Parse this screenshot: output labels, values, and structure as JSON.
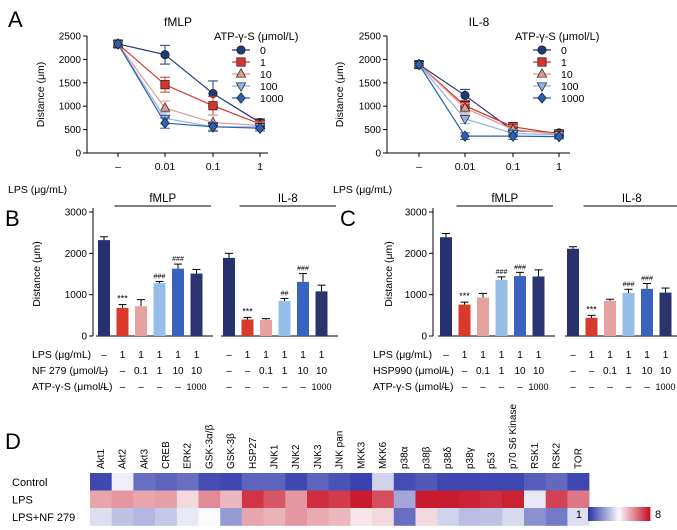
{
  "panels": {
    "A": "A",
    "B": "B",
    "C": "C",
    "D": "D"
  },
  "colors": {
    "c0": "#1f3a78",
    "c1": "#d9332a",
    "c10": "#e09a95",
    "c100": "#8fb4e2",
    "c1000": "#2c5fb5",
    "navy": "#26326e",
    "red": "#d83a2c",
    "salmon": "#e5a29e",
    "lightblue": "#96bfe8",
    "blue": "#3a63c0",
    "darknavy": "#2c3470"
  },
  "chart_data": [
    {
      "id": "A-fMLP",
      "type": "line",
      "title": "fMLP",
      "ylabel": "Distance (μm)",
      "xlabel": "LPS (μg/mL)",
      "ylim": [
        0,
        2500
      ],
      "yticks": [
        0,
        500,
        1000,
        1500,
        2000,
        2500
      ],
      "categories": [
        "–",
        "0.01",
        "0.1",
        "1"
      ],
      "legend_title": "ATP-γ-S (μmol/L)",
      "series": [
        {
          "name": "0",
          "marker": "circle",
          "color": "#1f3a78",
          "values": [
            2330,
            2100,
            1270,
            650
          ],
          "err": [
            0,
            200,
            270,
            80
          ]
        },
        {
          "name": "1",
          "marker": "square",
          "color": "#d9332a",
          "values": [
            2330,
            1460,
            1010,
            620
          ],
          "err": [
            0,
            160,
            200,
            80
          ]
        },
        {
          "name": "10",
          "marker": "triangle",
          "color": "#e09a95",
          "values": [
            2330,
            960,
            650,
            590
          ],
          "err": [
            0,
            150,
            160,
            70
          ]
        },
        {
          "name": "100",
          "marker": "tri-down",
          "color": "#8fb4e2",
          "values": [
            2330,
            740,
            560,
            560
          ],
          "err": [
            0,
            120,
            100,
            60
          ]
        },
        {
          "name": "1000",
          "marker": "diamond",
          "color": "#2c5fb5",
          "values": [
            2330,
            640,
            560,
            530
          ],
          "err": [
            0,
            110,
            90,
            60
          ]
        }
      ]
    },
    {
      "id": "A-IL8",
      "type": "line",
      "title": "IL-8",
      "ylabel": "Distance (μm)",
      "xlabel": "LPS (μg/mL)",
      "ylim": [
        0,
        2500
      ],
      "yticks": [
        0,
        500,
        1000,
        1500,
        2000,
        2500
      ],
      "categories": [
        "–",
        "0.01",
        "0.1",
        "1"
      ],
      "legend_title": "ATP-γ-S (μmol/L)",
      "series": [
        {
          "name": "0",
          "marker": "circle",
          "color": "#1f3a78",
          "values": [
            1890,
            1230,
            480,
            430
          ],
          "err": [
            0,
            130,
            90,
            60
          ]
        },
        {
          "name": "1",
          "marker": "square",
          "color": "#d9332a",
          "values": [
            1890,
            1010,
            560,
            410
          ],
          "err": [
            0,
            110,
            90,
            50
          ]
        },
        {
          "name": "10",
          "marker": "triangle",
          "color": "#e09a95",
          "values": [
            1890,
            960,
            500,
            400
          ],
          "err": [
            0,
            100,
            80,
            50
          ]
        },
        {
          "name": "100",
          "marker": "tri-down",
          "color": "#8fb4e2",
          "values": [
            1890,
            730,
            420,
            390
          ],
          "err": [
            0,
            100,
            80,
            50
          ]
        },
        {
          "name": "1000",
          "marker": "diamond",
          "color": "#2c5fb5",
          "values": [
            1890,
            360,
            360,
            350
          ],
          "err": [
            0,
            70,
            70,
            50
          ]
        }
      ]
    },
    {
      "id": "B",
      "type": "bar",
      "ylabel": "Distance (μm)",
      "ylim": [
        0,
        3000
      ],
      "yticks": [
        0,
        1000,
        2000,
        3000
      ],
      "groups": [
        "fMLP",
        "IL-8"
      ],
      "row_labels": [
        "LPS (μg/mL)",
        "NF 279 (μmol/L)",
        "ATP-γ-S (μmol/L)"
      ],
      "rows": [
        [
          "–",
          "1",
          "1",
          "1",
          "1",
          "1"
        ],
        [
          "–",
          "–",
          "0.1",
          "1",
          "10",
          "10"
        ],
        [
          "–",
          "–",
          "–",
          "–",
          "–",
          "1000"
        ]
      ],
      "series": [
        {
          "name": "fMLP",
          "values": [
            2320,
            680,
            720,
            1280,
            1630,
            1510
          ],
          "err": [
            80,
            80,
            160,
            40,
            110,
            100
          ],
          "marks": [
            "",
            "***",
            "",
            "###",
            "###",
            ""
          ]
        },
        {
          "name": "IL-8",
          "values": [
            1890,
            400,
            390,
            850,
            1310,
            1080
          ],
          "err": [
            110,
            50,
            30,
            60,
            200,
            150
          ],
          "marks": [
            "",
            "***",
            "",
            "##",
            "###",
            ""
          ]
        }
      ]
    },
    {
      "id": "C",
      "type": "bar",
      "ylabel": "Distance (μm)",
      "ylim": [
        0,
        3000
      ],
      "yticks": [
        0,
        1000,
        2000,
        3000
      ],
      "groups": [
        "fMLP",
        "IL-8"
      ],
      "row_labels": [
        "LPS (μg/mL)",
        "HSP990 (μmol/L)",
        "ATP-γ-S (μmol/L)"
      ],
      "rows": [
        [
          "–",
          "1",
          "1",
          "1",
          "1",
          "1"
        ],
        [
          "–",
          "–",
          "0.1",
          "1",
          "10",
          "10"
        ],
        [
          "–",
          "–",
          "–",
          "–",
          "–",
          "1000"
        ]
      ],
      "series": [
        {
          "name": "fMLP",
          "values": [
            2390,
            760,
            930,
            1360,
            1450,
            1440
          ],
          "err": [
            90,
            60,
            100,
            70,
            90,
            160
          ],
          "marks": [
            "",
            "***",
            "",
            "###",
            "###",
            ""
          ]
        },
        {
          "name": "IL-8",
          "values": [
            2110,
            440,
            850,
            1040,
            1140,
            1050
          ],
          "err": [
            50,
            60,
            40,
            90,
            130,
            110
          ],
          "marks": [
            "",
            "***",
            "",
            "###",
            "###",
            ""
          ]
        }
      ]
    },
    {
      "id": "D",
      "type": "heatmap",
      "columns": [
        "Akt1",
        "Akt2",
        "Akt3",
        "CREB",
        "ERK2",
        "GSK-3α/β",
        "GSK-3β",
        "HSP27",
        "JNK1",
        "JNK2",
        "JNK3",
        "JNK pan",
        "MKK3",
        "MKK6",
        "p38α",
        "p38β",
        "p38δ",
        "p38γ",
        "p53",
        "p70 S6 Kinase",
        "RSK1",
        "RSK2",
        "TOR"
      ],
      "rows": [
        "Control",
        "LPS",
        "LPS+NF 279"
      ],
      "values": [
        [
          1.3,
          4.3,
          2.0,
          1.8,
          2.0,
          1.4,
          1.3,
          1.8,
          1.8,
          1.3,
          1.8,
          1.5,
          1.2,
          3.8,
          1.4,
          1.6,
          1.3,
          1.3,
          1.3,
          1.3,
          1.7,
          1.9,
          1.3
        ],
        [
          5.8,
          6.0,
          5.8,
          5.9,
          5.0,
          6.2,
          5.5,
          7.5,
          7.0,
          6.0,
          7.6,
          7.4,
          7.9,
          7.1,
          3.0,
          7.9,
          7.9,
          7.8,
          7.6,
          7.8,
          4.2,
          7.3,
          6.5
        ],
        [
          4.0,
          3.5,
          3.3,
          3.6,
          4.2,
          4.5,
          2.8,
          5.8,
          5.6,
          6.0,
          5.7,
          5.5,
          4.8,
          5.0,
          2.0,
          5.0,
          3.8,
          3.4,
          3.5,
          3.9,
          2.6,
          2.2,
          4.0
        ]
      ],
      "colorbar": {
        "min_label": "1",
        "max_label": "8",
        "min": 1,
        "max": 8
      }
    }
  ]
}
